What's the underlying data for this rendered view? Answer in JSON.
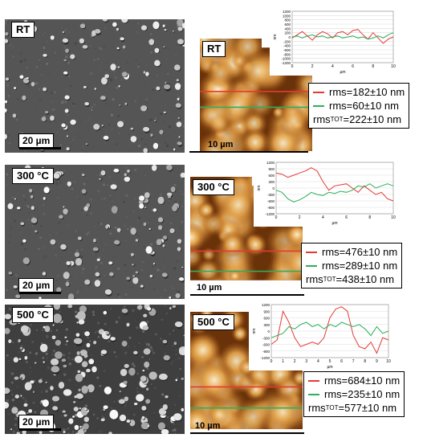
{
  "colors": {
    "line1": "#e53935",
    "line2": "#2eae5a",
    "afm_dark": "#5b2a06",
    "afm_light": "#f6e4b0"
  },
  "panels": [
    {
      "temperature": "RT",
      "sem_scale": "20 µm",
      "afm_label": "RT",
      "afm_scale": "10 µm",
      "rms_red": "rms=182±10 nm",
      "rms_green": "rms=60±10 nm",
      "rms_tot_prefix": "rms",
      "rms_tot_sub": "TOT",
      "rms_tot_value": "=222±10 nm",
      "chart_data": {
        "type": "line",
        "ylabel": "nm",
        "xlabel": "µm",
        "xlim": [
          0,
          10
        ],
        "ylim": [
          -1200,
          1200
        ],
        "y_ticks": [
          "1200",
          "1000",
          "800",
          "600",
          "400",
          "200",
          "0",
          "-200",
          "-400",
          "-600",
          "-800",
          "-1000",
          "-1200"
        ],
        "x_ticks": [
          "0",
          "2",
          "4",
          "6",
          "8",
          "10"
        ],
        "series": [
          {
            "color": "red",
            "x": [
              0,
              0.5,
              1,
              1.5,
              2,
              2.5,
              3,
              3.5,
              4,
              4.5,
              5,
              5.5,
              6,
              6.5,
              7,
              7.5,
              8,
              8.5,
              9,
              9.5,
              10
            ],
            "values": [
              -50,
              100,
              250,
              50,
              -150,
              100,
              250,
              150,
              -50,
              200,
              250,
              100,
              300,
              350,
              100,
              -100,
              200,
              -50,
              -300,
              -100,
              0
            ]
          },
          {
            "color": "green",
            "x": [
              0,
              0.5,
              1,
              1.5,
              2,
              2.5,
              3,
              3.5,
              4,
              4.5,
              5,
              5.5,
              6,
              6.5,
              7,
              7.5,
              8,
              8.5,
              9,
              9.5,
              10
            ],
            "values": [
              0,
              50,
              -50,
              50,
              100,
              0,
              50,
              -50,
              0,
              50,
              -50,
              0,
              50,
              -50,
              0,
              -100,
              -50,
              50,
              -50,
              100,
              200
            ]
          }
        ]
      }
    },
    {
      "temperature": "300 °C",
      "sem_scale": "20 µm",
      "afm_label": "300 °C",
      "afm_scale": "10 µm",
      "rms_red": "rms=476±10 nm",
      "rms_green": "rms=289±10 nm",
      "rms_tot_prefix": "rms",
      "rms_tot_sub": "TOT",
      "rms_tot_value": "=438±10 nm",
      "chart_data": {
        "type": "line",
        "ylabel": "nm",
        "xlabel": "µm",
        "xlim": [
          0,
          10
        ],
        "ylim": [
          -1200,
          1200
        ],
        "y_ticks": [
          "1200",
          "900",
          "600",
          "300",
          "0",
          "-300",
          "-600",
          "-900",
          "-1200"
        ],
        "x_ticks": [
          "0",
          "2",
          "4",
          "6",
          "8",
          "10"
        ],
        "series": [
          {
            "color": "red",
            "x": [
              0,
              0.5,
              1,
              1.5,
              2,
              2.5,
              3,
              3.5,
              4,
              4.5,
              5,
              5.5,
              6,
              6.5,
              7,
              7.5,
              8,
              8.5,
              9,
              9.5,
              10
            ],
            "values": [
              700,
              650,
              500,
              600,
              700,
              800,
              950,
              800,
              300,
              -100,
              100,
              150,
              200,
              0,
              -200,
              100,
              -100,
              -300,
              -200,
              -500,
              -600
            ]
          },
          {
            "color": "green",
            "x": [
              0,
              0.5,
              1,
              1.5,
              2,
              2.5,
              3,
              3.5,
              4,
              4.5,
              5,
              5.5,
              6,
              6.5,
              7,
              7.5,
              8,
              8.5,
              9,
              9.5,
              10
            ],
            "values": [
              -100,
              -200,
              -500,
              -650,
              -550,
              -400,
              -200,
              -300,
              -350,
              -200,
              -250,
              -150,
              -200,
              -100,
              100,
              50,
              200,
              0,
              100,
              200,
              100
            ]
          }
        ]
      }
    },
    {
      "temperature": "500 °C",
      "sem_scale": "20 µm",
      "afm_label": "500 °C",
      "afm_scale": "10 µm",
      "rms_red": "rms=684±10 nm",
      "rms_green": "rms=235±10 nm",
      "rms_tot_prefix": "rms",
      "rms_tot_sub": "TOT",
      "rms_tot_value": "=577±10 nm",
      "chart_data": {
        "type": "line",
        "ylabel": "nm",
        "xlabel": "µm",
        "xlim": [
          0,
          10
        ],
        "ylim": [
          -1200,
          1200
        ],
        "y_ticks": [
          "1200",
          "900",
          "600",
          "300",
          "0",
          "-300",
          "-600",
          "-900",
          "-1200"
        ],
        "x_ticks": [
          "0",
          "1",
          "2",
          "3",
          "4",
          "5",
          "6",
          "7",
          "8",
          "9",
          "10"
        ],
        "series": [
          {
            "color": "red",
            "x": [
              0,
              0.5,
              1,
              1.5,
              2,
              2.5,
              3,
              3.5,
              4,
              4.5,
              5,
              5.5,
              6,
              6.5,
              7,
              7.5,
              8,
              8.5,
              9,
              9.5,
              10
            ],
            "values": [
              -600,
              -400,
              900,
              400,
              -300,
              -700,
              -600,
              -500,
              -600,
              -300,
              600,
              1000,
              1100,
              900,
              -200,
              -700,
              -800,
              -500,
              -1000,
              -300,
              -400
            ]
          },
          {
            "color": "green",
            "x": [
              0,
              0.5,
              1,
              1.5,
              2,
              2.5,
              3,
              3.5,
              4,
              4.5,
              5,
              5.5,
              6,
              6.5,
              7,
              7.5,
              8,
              8.5,
              9,
              9.5,
              10
            ],
            "values": [
              -300,
              -200,
              -100,
              200,
              100,
              300,
              400,
              200,
              300,
              100,
              300,
              200,
              400,
              300,
              200,
              300,
              100,
              -200,
              200,
              -100,
              0
            ]
          }
        ]
      }
    }
  ]
}
